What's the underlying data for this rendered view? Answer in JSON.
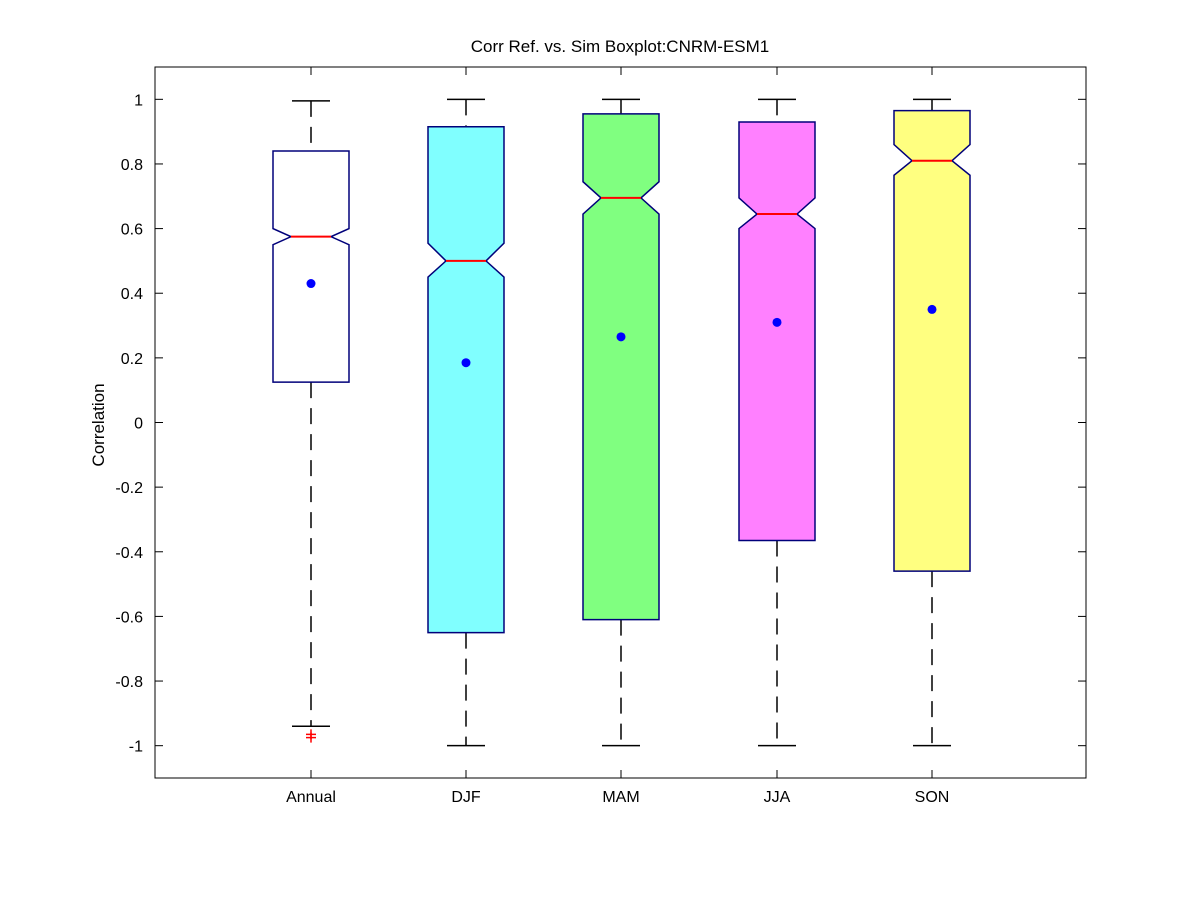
{
  "chart_data": {
    "type": "boxplot",
    "title": "Corr Ref. vs. Sim Boxplot:CNRM-ESM1",
    "xlabel": "",
    "ylabel": "Correlation",
    "ylim": [
      -1.1,
      1.1
    ],
    "yticks": [
      -1,
      -0.8,
      -0.6,
      -0.4,
      -0.2,
      0,
      0.2,
      0.4,
      0.6,
      0.8,
      1
    ],
    "ytick_labels": [
      "-1",
      "-0.8",
      "-0.6",
      "-0.4",
      "-0.2",
      "0",
      "0.2",
      "0.4",
      "0.6",
      "0.8",
      "1"
    ],
    "grid": false,
    "notched": true,
    "categories": [
      "Annual",
      "DJF",
      "MAM",
      "JJA",
      "SON"
    ],
    "boxes": [
      {
        "category": "Annual",
        "whisker_low": -0.94,
        "q1": 0.125,
        "median": 0.575,
        "q3": 0.84,
        "whisker_high": 0.995,
        "notch_low": 0.55,
        "notch_high": 0.6,
        "mean": 0.43,
        "outliers": [
          -0.965,
          -0.975
        ],
        "fill": "#ffffff"
      },
      {
        "category": "DJF",
        "whisker_low": -1.0,
        "q1": -0.65,
        "median": 0.5,
        "q3": 0.915,
        "whisker_high": 1.0,
        "notch_low": 0.45,
        "notch_high": 0.555,
        "mean": 0.185,
        "outliers": [],
        "fill": "#80ffff"
      },
      {
        "category": "MAM",
        "whisker_low": -1.0,
        "q1": -0.61,
        "median": 0.695,
        "q3": 0.955,
        "whisker_high": 1.0,
        "notch_low": 0.645,
        "notch_high": 0.745,
        "mean": 0.265,
        "outliers": [],
        "fill": "#80ff80"
      },
      {
        "category": "JJA",
        "whisker_low": -1.0,
        "q1": -0.365,
        "median": 0.645,
        "q3": 0.93,
        "whisker_high": 1.0,
        "notch_low": 0.6,
        "notch_high": 0.695,
        "mean": 0.31,
        "outliers": [],
        "fill": "#ff80ff"
      },
      {
        "category": "SON",
        "whisker_low": -1.0,
        "q1": -0.46,
        "median": 0.81,
        "q3": 0.965,
        "whisker_high": 1.0,
        "notch_low": 0.765,
        "notch_high": 0.86,
        "mean": 0.35,
        "outliers": [],
        "fill": "#ffff80"
      }
    ],
    "colors": {
      "box_edge": "#00007a",
      "median": "#ff0000",
      "mean_marker": "#0000ff",
      "outlier": "#ff0000",
      "whisker": "#000000"
    }
  }
}
